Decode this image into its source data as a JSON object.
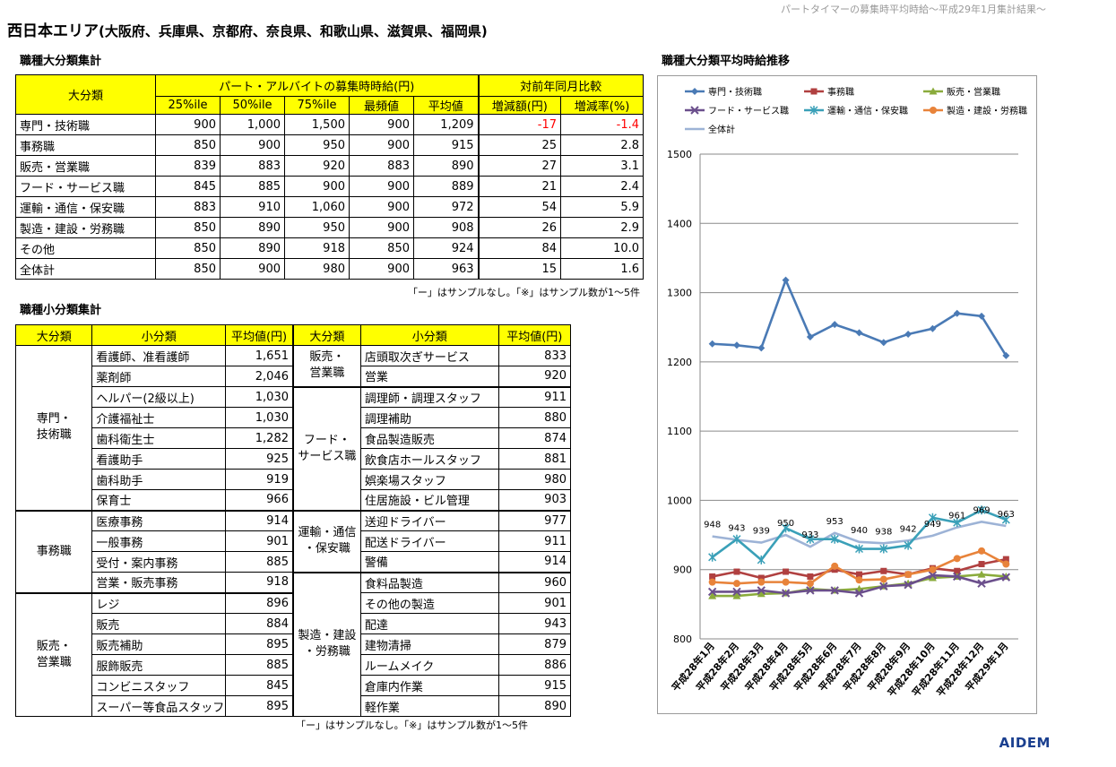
{
  "header_note": "パートタイマーの募集時平均時給～平成29年1月集計結果～",
  "title": {
    "main": "西日本エリア",
    "sub": "(大阪府、兵庫県、京都府、奈良県、和歌山県、滋賀県、福岡県)"
  },
  "major": {
    "section_title": "職種大分類集計",
    "h_category": "大分類",
    "h_wage_group": "パート・アルバイトの募集時時給(円)",
    "h_yoy_group": "対前年同月比較",
    "h_cols": [
      "25%ile",
      "50%ile",
      "75%ile",
      "最頻値",
      "平均値",
      "増減額(円)",
      "増減率(%)"
    ],
    "rows": [
      {
        "name": "専門・技術職",
        "v": [
          "900",
          "1,000",
          "1,500",
          "900",
          "1,209",
          "-17",
          "-1.4"
        ]
      },
      {
        "name": "事務職",
        "v": [
          "850",
          "900",
          "950",
          "900",
          "915",
          "25",
          "2.8"
        ]
      },
      {
        "name": "販売・営業職",
        "v": [
          "839",
          "883",
          "920",
          "883",
          "890",
          "27",
          "3.1"
        ]
      },
      {
        "name": "フード・サービス職",
        "v": [
          "845",
          "885",
          "900",
          "900",
          "889",
          "21",
          "2.4"
        ]
      },
      {
        "name": "運輸・通信・保安職",
        "v": [
          "883",
          "910",
          "1,060",
          "900",
          "972",
          "54",
          "5.9"
        ]
      },
      {
        "name": "製造・建設・労務職",
        "v": [
          "850",
          "890",
          "950",
          "900",
          "908",
          "26",
          "2.9"
        ]
      },
      {
        "name": "その他",
        "v": [
          "850",
          "890",
          "918",
          "850",
          "924",
          "84",
          "10.0"
        ]
      },
      {
        "name": "全体計",
        "v": [
          "850",
          "900",
          "980",
          "900",
          "963",
          "15",
          "1.6"
        ]
      }
    ],
    "note": "「ー」はサンプルなし。「※」はサンプル数が1～5件"
  },
  "minor": {
    "section_title": "職種小分類集計",
    "h_major": "大分類",
    "h_minor": "小分類",
    "h_avg": "平均値(円)",
    "left_groups": [
      {
        "label": "専門・\n技術職",
        "items": [
          [
            "看護師、准看護師",
            "1,651"
          ],
          [
            "薬剤師",
            "2,046"
          ],
          [
            "ヘルパー(2級以上)",
            "1,030"
          ],
          [
            "介護福祉士",
            "1,030"
          ],
          [
            "歯科衛生士",
            "1,282"
          ],
          [
            "看護助手",
            "925"
          ],
          [
            "歯科助手",
            "919"
          ],
          [
            "保育士",
            "966"
          ]
        ]
      },
      {
        "label": "事務職",
        "items": [
          [
            "医療事務",
            "914"
          ],
          [
            "一般事務",
            "901"
          ],
          [
            "受付・案内事務",
            "885"
          ],
          [
            "営業・販売事務",
            "918"
          ]
        ]
      },
      {
        "label": "販売・\n営業職",
        "items": [
          [
            "レジ",
            "896"
          ],
          [
            "販売",
            "884"
          ],
          [
            "販売補助",
            "895"
          ],
          [
            "服飾販売",
            "885"
          ],
          [
            "コンビニスタッフ",
            "845"
          ],
          [
            "スーパー等食品スタッフ",
            "895"
          ]
        ]
      }
    ],
    "right_groups": [
      {
        "label": "販売・\n営業職",
        "items": [
          [
            "店頭取次ぎサービス",
            "833"
          ],
          [
            "営業",
            "920"
          ]
        ]
      },
      {
        "label": "フード・\nサービス職",
        "items": [
          [
            "調理師・調理スタッフ",
            "911"
          ],
          [
            "調理補助",
            "880"
          ],
          [
            "食品製造販売",
            "874"
          ],
          [
            "飲食店ホールスタッフ",
            "881"
          ],
          [
            "娯楽場スタッフ",
            "980"
          ],
          [
            "住居施設・ビル管理",
            "903"
          ]
        ]
      },
      {
        "label": "運輸・通信\n・保安職",
        "items": [
          [
            "送迎ドライバー",
            "977"
          ],
          [
            "配送ドライバー",
            "911"
          ],
          [
            "警備",
            "914"
          ]
        ]
      },
      {
        "label": "製造・建設\n・労務職",
        "items": [
          [
            "食料品製造",
            "960"
          ],
          [
            "その他の製造",
            "901"
          ],
          [
            "配達",
            "943"
          ],
          [
            "建物清掃",
            "879"
          ],
          [
            "ルームメイク",
            "886"
          ],
          [
            "倉庫内作業",
            "915"
          ],
          [
            "軽作業",
            "890"
          ]
        ]
      }
    ],
    "note": "「ー」はサンプルなし。「※」はサンプル数が1～5件"
  },
  "chart_title": "職種大分類平均時給推移",
  "chart_data": {
    "type": "line",
    "title": "職種大分類平均時給推移",
    "x": [
      "平成28年1月",
      "平成28年2月",
      "平成28年3月",
      "平成28年4月",
      "平成28年5月",
      "平成28年6月",
      "平成28年7月",
      "平成28年8月",
      "平成28年9月",
      "平成28年10月",
      "平成28年11月",
      "平成28年12月",
      "平成29年1月"
    ],
    "ylim": [
      800,
      1500
    ],
    "yticks": [
      800,
      900,
      1000,
      1100,
      1200,
      1300,
      1400,
      1500
    ],
    "legend": "top",
    "series": [
      {
        "name": "専門・技術職",
        "color": "#4a7ab5",
        "marker": "diamond",
        "values": [
          1226,
          1224,
          1220,
          1318,
          1236,
          1254,
          1242,
          1228,
          1240,
          1248,
          1270,
          1266,
          1209
        ]
      },
      {
        "name": "事務職",
        "color": "#b04040",
        "marker": "square",
        "values": [
          890,
          897,
          888,
          897,
          890,
          900,
          893,
          898,
          893,
          902,
          898,
          908,
          915
        ]
      },
      {
        "name": "販売・営業職",
        "color": "#8aab3c",
        "marker": "triangle",
        "values": [
          862,
          862,
          865,
          866,
          872,
          870,
          872,
          876,
          880,
          888,
          890,
          893,
          890
        ]
      },
      {
        "name": "フード・サービス職",
        "color": "#6b4f8c",
        "marker": "x",
        "values": [
          868,
          868,
          870,
          866,
          870,
          870,
          866,
          876,
          878,
          892,
          890,
          880,
          889
        ]
      },
      {
        "name": "運輸・通信・保安職",
        "color": "#3aa0b8",
        "marker": "star",
        "values": [
          918,
          944,
          914,
          960,
          944,
          944,
          930,
          930,
          935,
          975,
          968,
          986,
          972
        ]
      },
      {
        "name": "製造・建設・労務職",
        "color": "#e8833a",
        "marker": "circle",
        "values": [
          882,
          880,
          882,
          882,
          880,
          905,
          885,
          886,
          893,
          900,
          916,
          927,
          908
        ]
      },
      {
        "name": "全体計",
        "color": "#9db3d6",
        "marker": "line",
        "values": [
          948,
          943,
          939,
          950,
          933,
          953,
          940,
          938,
          942,
          949,
          961,
          969,
          963
        ],
        "labels": [
          "948",
          "943",
          "939",
          "950",
          "933",
          "953",
          "940",
          "938",
          "942",
          "949",
          "961",
          "969",
          "963"
        ]
      }
    ]
  },
  "logo": "AIDEM"
}
